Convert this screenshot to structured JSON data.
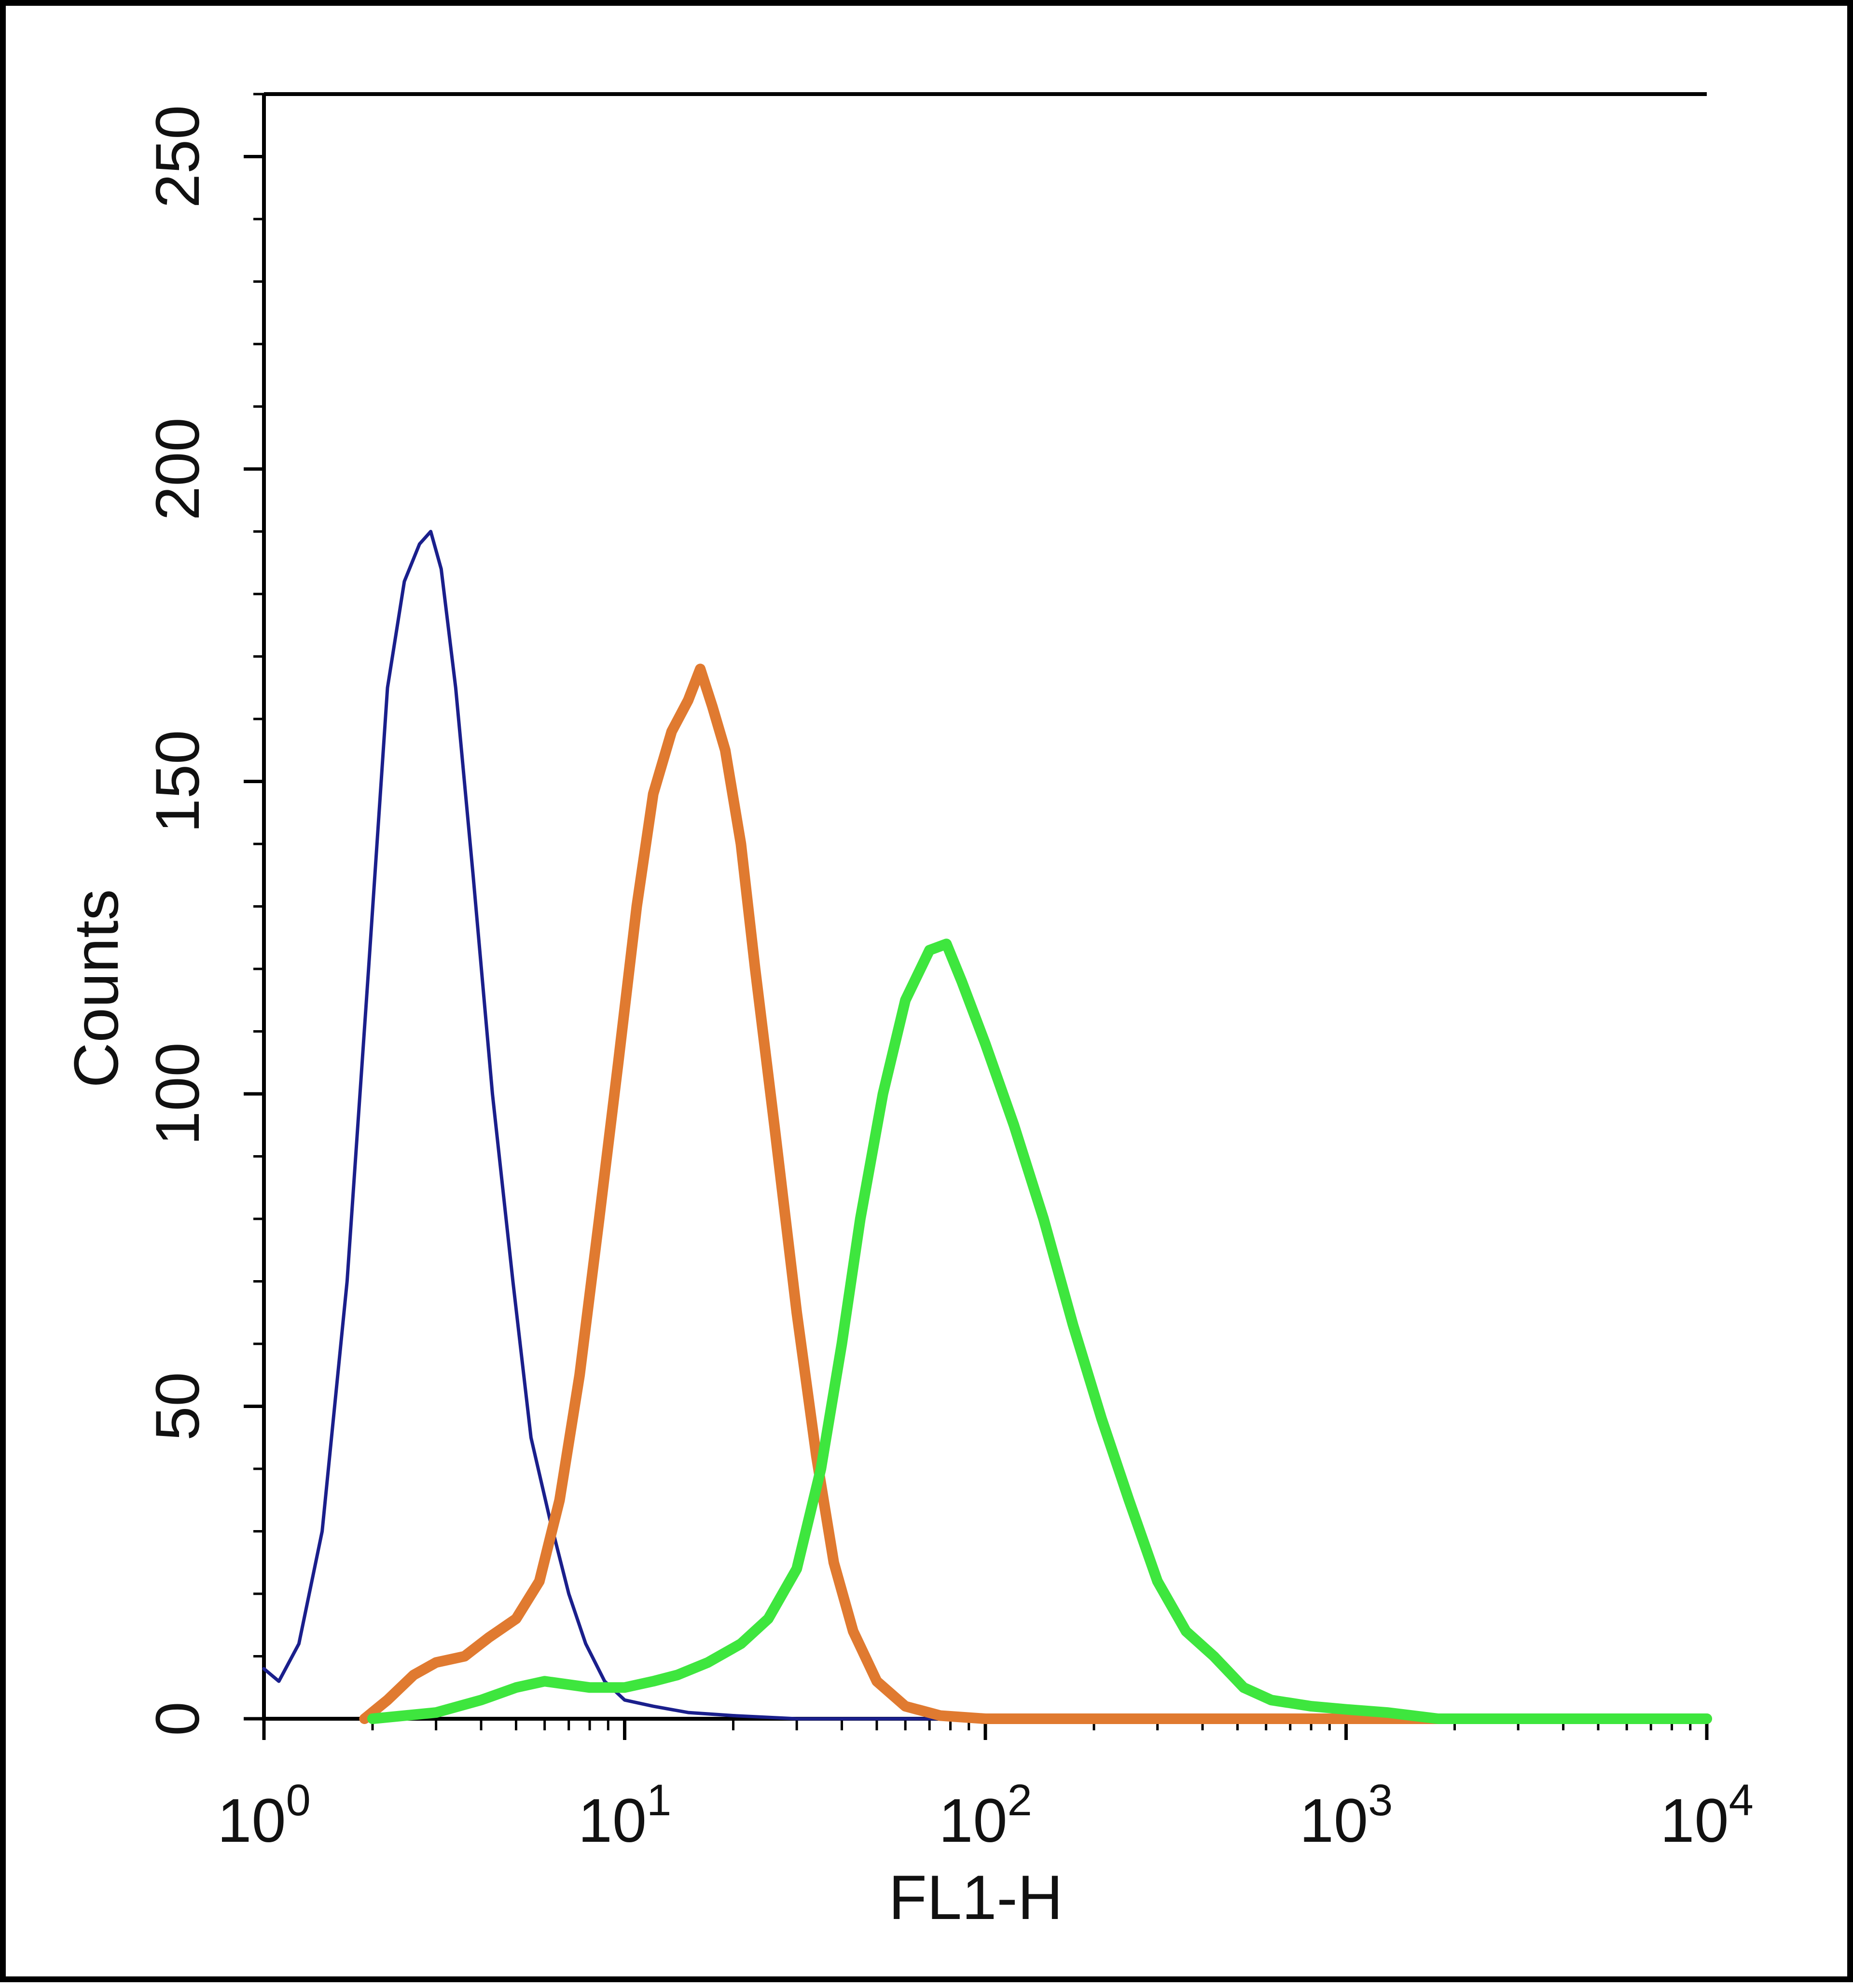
{
  "chart_data": {
    "type": "line",
    "xlabel": "FL1-H",
    "ylabel": "Counts",
    "xscale": "log",
    "xlim": [
      1,
      10000
    ],
    "ylim": [
      0,
      260
    ],
    "grid": false,
    "legend": "none",
    "x_ticks": [
      {
        "value": 1,
        "base": "10",
        "exp": "0"
      },
      {
        "value": 10,
        "base": "10",
        "exp": "1"
      },
      {
        "value": 100,
        "base": "10",
        "exp": "2"
      },
      {
        "value": 1000,
        "base": "10",
        "exp": "3"
      },
      {
        "value": 10000,
        "base": "10",
        "exp": "4"
      }
    ],
    "y_ticks": [
      0,
      50,
      100,
      150,
      200,
      250
    ],
    "series": [
      {
        "color": "#1a1f8c",
        "points": [
          [
            1.0,
            8
          ],
          [
            1.1,
            6
          ],
          [
            1.25,
            12
          ],
          [
            1.45,
            30
          ],
          [
            1.7,
            70
          ],
          [
            1.95,
            120
          ],
          [
            2.2,
            165
          ],
          [
            2.45,
            182
          ],
          [
            2.7,
            188
          ],
          [
            2.9,
            190
          ],
          [
            3.1,
            184
          ],
          [
            3.4,
            165
          ],
          [
            3.8,
            135
          ],
          [
            4.3,
            100
          ],
          [
            4.9,
            70
          ],
          [
            5.5,
            45
          ],
          [
            6.2,
            32
          ],
          [
            7.0,
            20
          ],
          [
            7.8,
            12
          ],
          [
            8.8,
            6
          ],
          [
            10,
            3
          ],
          [
            12,
            2
          ],
          [
            15,
            1
          ],
          [
            20,
            0.5
          ],
          [
            30,
            0
          ],
          [
            50,
            0
          ],
          [
            100,
            0
          ],
          [
            1000,
            0
          ],
          [
            10000,
            0
          ]
        ]
      },
      {
        "color": "#e07a30",
        "points": [
          [
            1.9,
            0
          ],
          [
            2.2,
            3
          ],
          [
            2.6,
            7
          ],
          [
            3.0,
            9
          ],
          [
            3.6,
            10
          ],
          [
            4.2,
            13
          ],
          [
            5.0,
            16
          ],
          [
            5.8,
            22
          ],
          [
            6.6,
            35
          ],
          [
            7.5,
            55
          ],
          [
            8.5,
            80
          ],
          [
            9.6,
            105
          ],
          [
            10.8,
            130
          ],
          [
            12.0,
            148
          ],
          [
            13.5,
            158
          ],
          [
            15.0,
            163
          ],
          [
            16.2,
            168
          ],
          [
            17.5,
            162
          ],
          [
            19.0,
            155
          ],
          [
            21.0,
            140
          ],
          [
            23.0,
            120
          ],
          [
            26.0,
            95
          ],
          [
            30.0,
            65
          ],
          [
            34.0,
            42
          ],
          [
            38.0,
            25
          ],
          [
            43.0,
            14
          ],
          [
            50.0,
            6
          ],
          [
            60.0,
            2
          ],
          [
            75.0,
            0.5
          ],
          [
            100.0,
            0
          ],
          [
            1000,
            0
          ],
          [
            10000,
            0
          ]
        ]
      },
      {
        "color": "#3ee63e",
        "points": [
          [
            2.0,
            0
          ],
          [
            3.0,
            1
          ],
          [
            4.0,
            3
          ],
          [
            5.0,
            5
          ],
          [
            6.0,
            6
          ],
          [
            8.0,
            5
          ],
          [
            10.0,
            5
          ],
          [
            12.0,
            6
          ],
          [
            14.0,
            7
          ],
          [
            17.0,
            9
          ],
          [
            21.0,
            12
          ],
          [
            25.0,
            16
          ],
          [
            30.0,
            24
          ],
          [
            35.0,
            40
          ],
          [
            40.0,
            60
          ],
          [
            45.0,
            80
          ],
          [
            52.0,
            100
          ],
          [
            60.0,
            115
          ],
          [
            70.0,
            123
          ],
          [
            78.0,
            124
          ],
          [
            86.0,
            118
          ],
          [
            100.0,
            108
          ],
          [
            120.0,
            95
          ],
          [
            145.0,
            80
          ],
          [
            175.0,
            63
          ],
          [
            210.0,
            48
          ],
          [
            250.0,
            35
          ],
          [
            300.0,
            22
          ],
          [
            360.0,
            14
          ],
          [
            430.0,
            10
          ],
          [
            520.0,
            5
          ],
          [
            620.0,
            3
          ],
          [
            800.0,
            2
          ],
          [
            1000.0,
            1.5
          ],
          [
            1300.0,
            1
          ],
          [
            1800.0,
            0
          ],
          [
            10000,
            0
          ]
        ]
      }
    ]
  }
}
